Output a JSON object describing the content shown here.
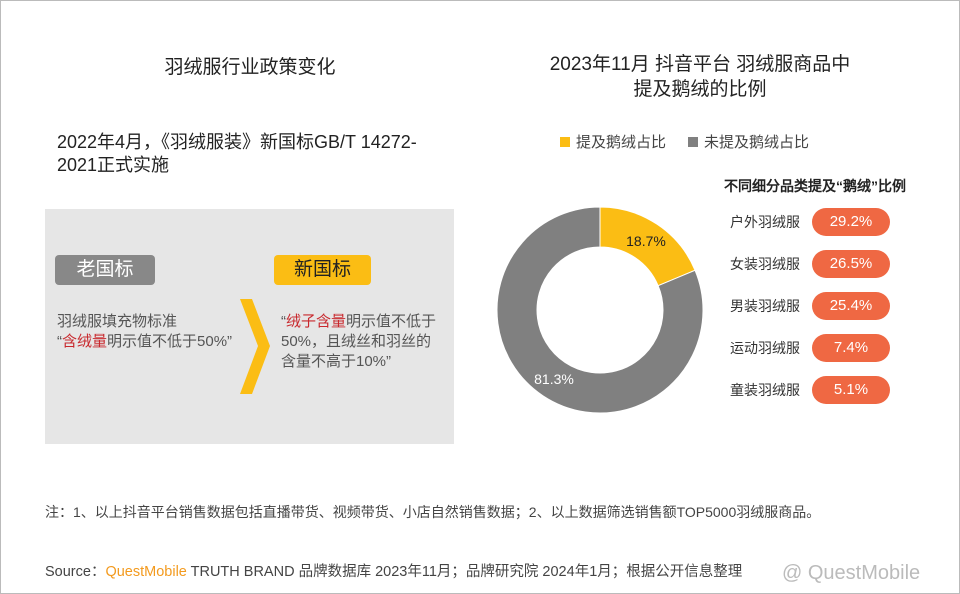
{
  "left": {
    "title": "羽绒服行业政策变化",
    "headline": "2022年4月，《羽绒服装》新国标GB/T 14272-2021正式实施",
    "old": {
      "badge": "老国标",
      "line1": "羽绒服填充物标准",
      "q_open": "“",
      "highlight": "含绒量",
      "rest": "明示值不低于50%”"
    },
    "new": {
      "badge": "新国标",
      "q_open": "“",
      "highlight": "绒子含量",
      "rest": "明示值不低于50%，且绒丝和羽丝的含量不高于10%”"
    }
  },
  "right": {
    "title_line1": "2023年11月 抖音平台 羽绒服商品中",
    "title_line2": "提及鹅绒的比例",
    "legend": [
      {
        "label": "提及鹅绒占比",
        "color": "#fbbd14"
      },
      {
        "label": "未提及鹅绒占比",
        "color": "#808080"
      }
    ],
    "subtitle": "不同细分品类提及“鹅绒”比例",
    "categories": [
      {
        "label": "户外羽绒服",
        "value": "29.2%"
      },
      {
        "label": "女装羽绒服",
        "value": "26.5%"
      },
      {
        "label": "男装羽绒服",
        "value": "25.4%"
      },
      {
        "label": "运动羽绒服",
        "value": "7.4%"
      },
      {
        "label": "童装羽绒服",
        "value": "5.1%"
      }
    ]
  },
  "chart_data": {
    "type": "pie",
    "variant": "donut",
    "labels": [
      "提及鹅绒占比",
      "未提及鹅绒占比"
    ],
    "values": [
      18.7,
      81.3
    ],
    "value_labels": [
      "18.7%",
      "81.3%"
    ],
    "colors": [
      "#fbbd14",
      "#808080"
    ]
  },
  "footer": {
    "note": "注：1、以上抖音平台销售数据包括直播带货、视频带货、小店自然销售数据；2、以上数据筛选销售额TOP5000羽绒服商品。",
    "source_prefix": "Source：",
    "brand": "QuestMobile",
    "source_rest": " TRUTH BRAND 品牌数据库 2023年11月；品牌研究院 2024年1月；根据公开信息整理",
    "watermark": "@ QuestMobile"
  }
}
